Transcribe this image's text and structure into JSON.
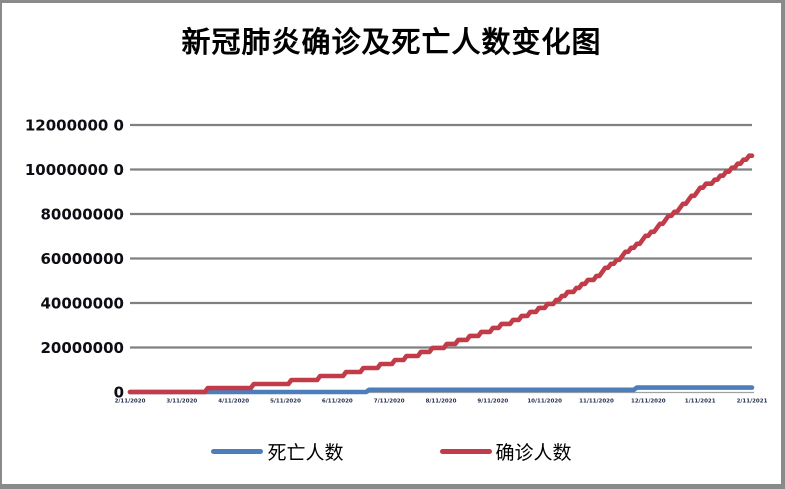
{
  "page": {
    "title": "新冠肺炎确诊及死亡人数变化图"
  },
  "chart_data": {
    "type": "line",
    "title": "新冠肺炎确诊及死亡人数变化图",
    "x": [
      "2/11/2020",
      "3/11/2020",
      "4/11/2020",
      "5/11/2020",
      "6/11/2020",
      "7/11/2020",
      "8/11/2020",
      "9/11/2020",
      "10/11/2020",
      "11/11/2020",
      "12/11/2020",
      "1/11/2021",
      "2/11/2021"
    ],
    "series": [
      {
        "name": "死亡人数",
        "color": "#4d7ebc",
        "values": [
          1100,
          4300,
          110000,
          290000,
          410000,
          570000,
          740000,
          910000,
          1080000,
          1280000,
          1580000,
          1950000,
          2360000
        ]
      },
      {
        "name": "确诊人数",
        "color": "#c23b48",
        "values": [
          45000,
          120000,
          1800000,
          4200000,
          7400000,
          12900000,
          20200000,
          28100000,
          38000000,
          52000000,
          70500000,
          91000000,
          106500000
        ]
      }
    ],
    "ylim": [
      0,
      120000000
    ],
    "yticks": [
      0,
      20000000,
      40000000,
      60000000,
      80000000,
      100000000,
      120000000
    ],
    "ytick_labels": [
      "0",
      "20000000",
      "40000000",
      "60000000",
      "80000000",
      "10000000 0",
      "12000000 0"
    ],
    "xlabel": "",
    "ylabel": "",
    "grid": "horizontal",
    "legend_position": "bottom"
  },
  "style": {
    "grid_color": "#808080",
    "axis_color": "#a0a0a0",
    "frame_color": "#8a8a8a"
  }
}
